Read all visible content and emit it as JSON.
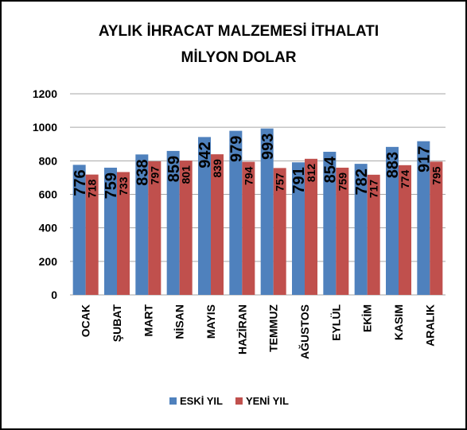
{
  "chart_data": {
    "type": "bar",
    "title": [
      "AYLIK İHRACAT MALZEMESİ İTHALATI",
      "MİLYON DOLAR"
    ],
    "categories": [
      "OCAK",
      "ŞUBAT",
      "MART",
      "NİSAN",
      "MAYIS",
      "HAZİRAN",
      "TEMMUZ",
      "AĞUSTOS",
      "EYLÜL",
      "EKİM",
      "KASIM",
      "ARALIK"
    ],
    "series": [
      {
        "name": "ESKİ YIL",
        "color": "#4f81bd",
        "values": [
          776,
          759,
          838,
          859,
          942,
          979,
          993,
          791,
          854,
          782,
          883,
          917
        ]
      },
      {
        "name": "YENİ YIL",
        "color": "#c0504d",
        "values": [
          718,
          733,
          797,
          801,
          839,
          794,
          757,
          812,
          759,
          717,
          774,
          795
        ]
      }
    ],
    "ylim": [
      0,
      1200
    ],
    "yticks": [
      0,
      200,
      400,
      600,
      800,
      1000,
      1200
    ],
    "grid": true,
    "legend": "bottom"
  }
}
